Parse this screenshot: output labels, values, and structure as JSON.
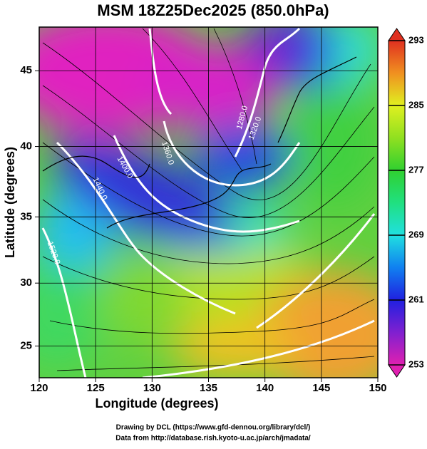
{
  "title": "MSM 18Z25Dec2025 (850.0hPa)",
  "x_axis": {
    "label": "Longitude (degrees)",
    "range": [
      120,
      150
    ],
    "ticks": [
      120,
      125,
      130,
      135,
      140,
      145,
      150
    ]
  },
  "y_axis": {
    "label": "Latitude  (degrees)",
    "range": [
      22.4,
      47.7
    ],
    "ticks": [
      25,
      30,
      35,
      40,
      45
    ],
    "projection": "mercator"
  },
  "colorbar": {
    "range": [
      253,
      293
    ],
    "ticks": [
      253,
      261,
      269,
      277,
      285,
      293
    ],
    "colors": [
      "#e020b0",
      "#8020d0",
      "#2020e0",
      "#1080f0",
      "#20e0e0",
      "#20e080",
      "#30d030",
      "#90e020",
      "#e0f020",
      "#f09020",
      "#e03020"
    ]
  },
  "contour_labels": [
    "1520.0",
    "1440.0",
    "1400.0",
    "1360.0",
    "1320.0",
    "1280.0"
  ],
  "credits": [
    "Drawing by DCL (https://www.gfd-dennou.org/library/dcl/)",
    "Data from http://database.rish.kyoto-u.ac.jp/arch/jmadata/"
  ]
}
